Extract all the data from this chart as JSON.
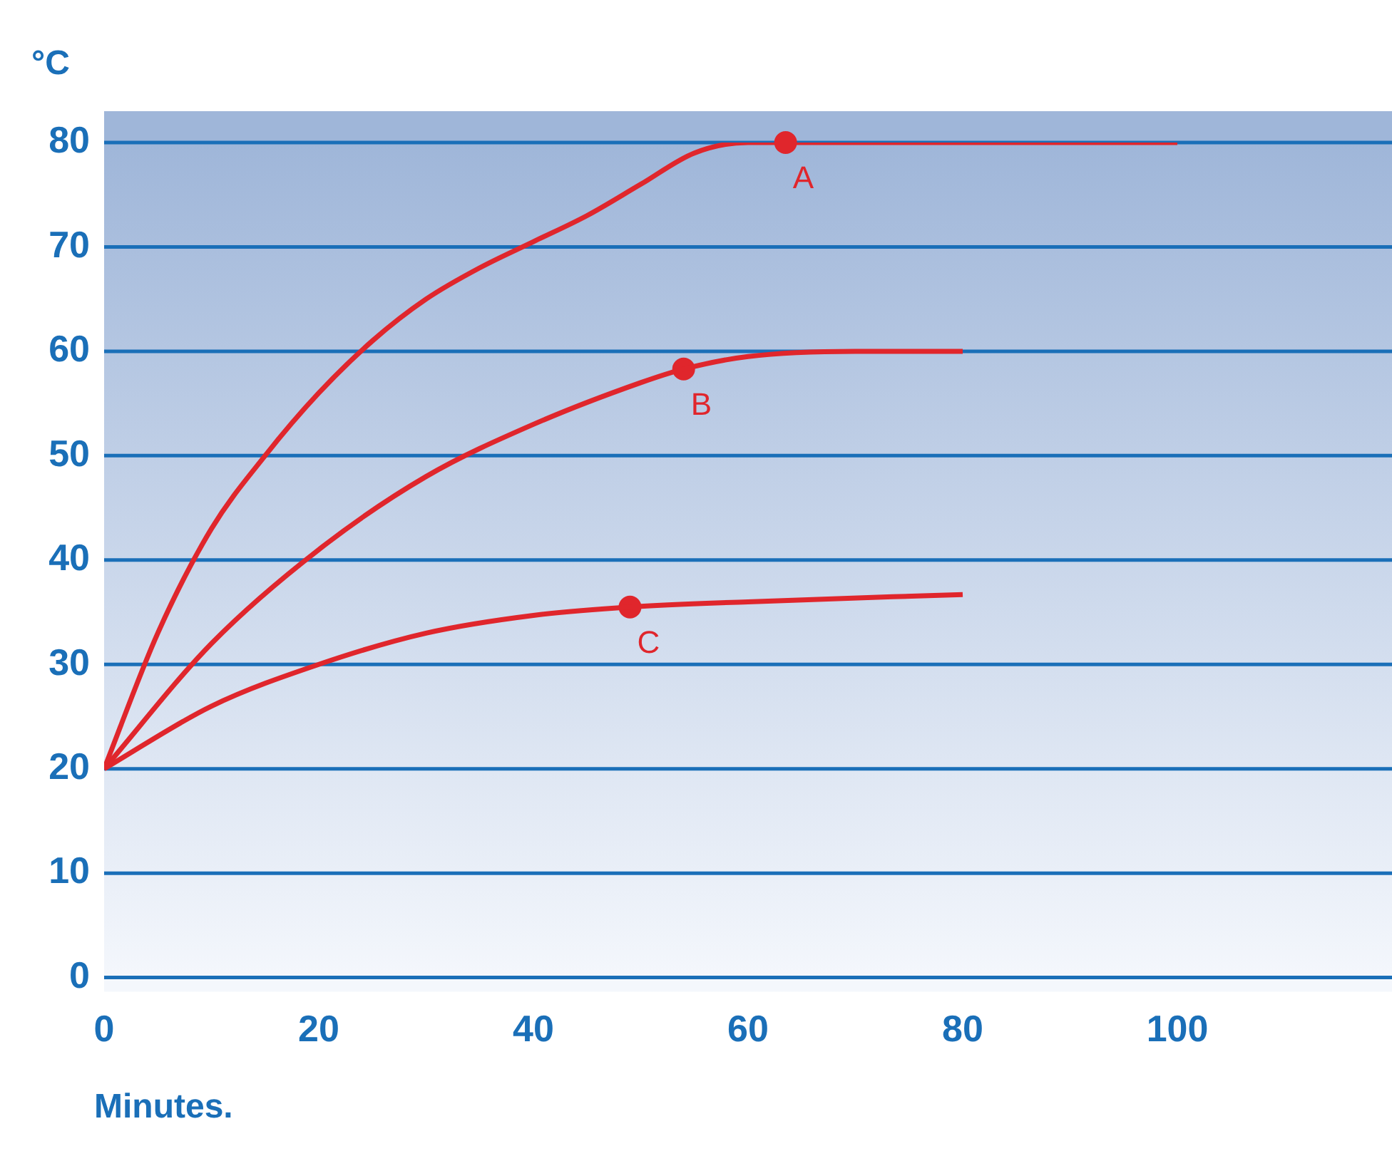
{
  "chart_data": {
    "type": "line",
    "xlabel": "Minutes.",
    "ylabel": "°C",
    "xlim": [
      0,
      120
    ],
    "xticks": [
      0,
      20,
      40,
      60,
      80,
      100
    ],
    "ylim": [
      0,
      80
    ],
    "yticks": [
      0,
      10,
      20,
      30,
      40,
      50,
      60,
      70,
      80
    ],
    "grid": "y",
    "marker": "none",
    "line_style": "solid",
    "legend": false,
    "series": [
      {
        "color": "#e0262c",
        "x": [
          0,
          5,
          10,
          15,
          20,
          25,
          30,
          35,
          40,
          45,
          50,
          55,
          60,
          64,
          80,
          100
        ],
        "values": [
          20,
          33,
          43,
          50,
          56,
          61,
          65,
          68,
          70.5,
          73,
          76,
          79,
          80,
          80,
          80,
          80
        ]
      },
      {
        "color": "#e0262c",
        "x": [
          0,
          10,
          20,
          30,
          40,
          50,
          54,
          60,
          70,
          80
        ],
        "values": [
          20,
          32,
          41,
          48,
          53,
          57,
          58.3,
          59.5,
          60,
          60
        ]
      },
      {
        "color": "#e0262c",
        "x": [
          0,
          10,
          20,
          30,
          40,
          49,
          60,
          80
        ],
        "values": [
          20,
          26,
          30,
          33,
          34.7,
          35.5,
          36,
          36.7
        ]
      }
    ],
    "annotations": [
      {
        "text": "A",
        "x": 63.5,
        "y": 80
      },
      {
        "text": "B",
        "x": 54,
        "y": 58.3
      },
      {
        "text": "C",
        "x": 49,
        "y": 35.5
      }
    ]
  }
}
